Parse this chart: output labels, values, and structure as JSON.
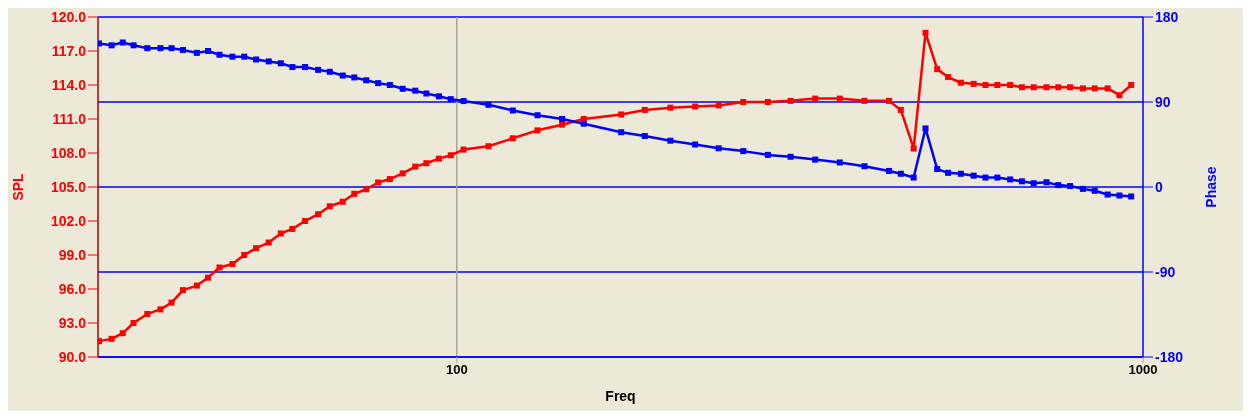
{
  "chart_data": {
    "type": "line",
    "xlabel": "Freq",
    "ylabel": "SPL",
    "y2label": "Phase",
    "log": "x",
    "x": [
      30.1,
      31.4,
      32.6,
      33.8,
      35.4,
      37.0,
      38.4,
      39.9,
      41.8,
      43.4,
      45.1,
      47.1,
      49.0,
      51.0,
      53.2,
      55.4,
      57.6,
      60.1,
      62.8,
      65.3,
      68.2,
      70.9,
      73.8,
      76.8,
      79.9,
      83.4,
      87.0,
      90.3,
      94.2,
      98.0,
      102.3,
      111.2,
      120.7,
      131.1,
      142.4,
      153.1,
      173.6,
      187.9,
      204.8,
      222.5,
      240.8,
      261.5,
      284.0,
      306.5,
      332.9,
      361.5,
      392.7,
      426.5,
      443.7,
      463.2,
      482.0,
      501.3,
      519.9,
      542.7,
      566.5,
      589.4,
      613.4,
      640.3,
      666.2,
      692.9,
      723.4,
      752.6,
      783.0,
      817.4,
      850.4,
      888.0,
      923.9,
      961.2
    ],
    "series": [
      {
        "color": "#ff0000",
        "values": [
          91.4,
          91.6,
          92.1,
          93.0,
          93.8,
          94.2,
          94.8,
          95.9,
          96.3,
          97.0,
          97.9,
          98.2,
          99.0,
          99.6,
          100.1,
          100.9,
          101.3,
          102.0,
          102.6,
          103.3,
          103.7,
          104.4,
          104.8,
          105.4,
          105.7,
          106.2,
          106.8,
          107.1,
          107.5,
          107.8,
          108.3,
          108.6,
          109.3,
          110.0,
          110.5,
          111.0,
          111.4,
          111.8,
          112.0,
          112.1,
          112.2,
          112.5,
          112.5,
          112.6,
          112.8,
          112.8,
          112.6,
          112.6,
          111.8,
          108.4,
          118.6,
          115.4,
          114.7,
          114.2,
          114.1,
          114.0,
          114.0,
          114.0,
          113.8,
          113.8,
          113.8,
          113.8,
          113.8,
          113.7,
          113.7,
          113.7,
          113.1,
          114.0
        ]
      },
      {
        "color": "#0000ff",
        "axis": "y2",
        "values": [
          152,
          150,
          153,
          150,
          147,
          147,
          147,
          145,
          142,
          144,
          140,
          138,
          138,
          135,
          133,
          131,
          127,
          127,
          124,
          122,
          118,
          116,
          113,
          110,
          108,
          104,
          102,
          99,
          96,
          93,
          91,
          87,
          81,
          76,
          72,
          67,
          58,
          54,
          49,
          45,
          41,
          38,
          34,
          32,
          29,
          26,
          22,
          17,
          14,
          10,
          62,
          19,
          15,
          14,
          12,
          10,
          10,
          8,
          6,
          4,
          5,
          2,
          1,
          -2,
          -4,
          -8,
          -9,
          -10
        ]
      }
    ],
    "xlim": [
      30,
      1000
    ],
    "xticks": [
      100,
      1000
    ],
    "ylim": [
      90,
      120
    ],
    "yticks": [
      {
        "value": 90,
        "label": "90.0"
      },
      {
        "value": 93,
        "label": "93.0"
      },
      {
        "value": 96,
        "label": "96.0"
      },
      {
        "value": 99,
        "label": "99.0"
      },
      {
        "value": 102,
        "label": "102.0"
      },
      {
        "value": 105,
        "label": "105.0"
      },
      {
        "value": 108,
        "label": "108.0"
      },
      {
        "value": 111,
        "label": "111.0"
      },
      {
        "value": 114,
        "label": "114.0"
      },
      {
        "value": 117,
        "label": "117.0"
      },
      {
        "value": 120,
        "label": "120.0"
      }
    ],
    "y2lim": [
      -180,
      180
    ],
    "y2ticks": [
      -180,
      -90,
      0,
      90,
      180
    ],
    "grid": "y",
    "ref_lines": [
      {
        "axis": "x",
        "value": 100,
        "color": "#a8a498"
      }
    ],
    "marker": "square",
    "line_style": "solid",
    "legend": false
  }
}
